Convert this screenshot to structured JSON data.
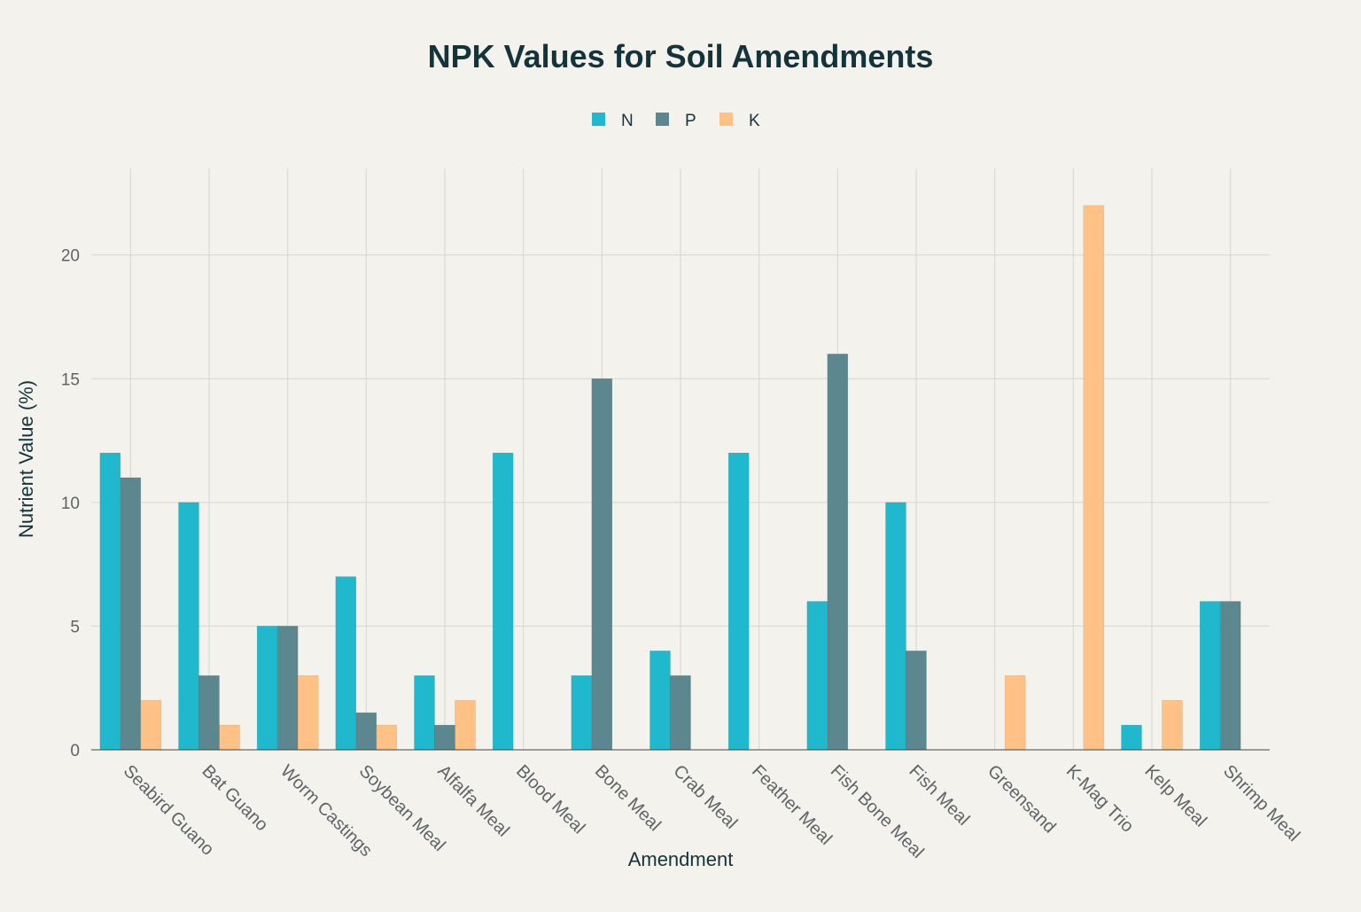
{
  "chart_data": {
    "type": "bar",
    "title": "NPK Values for Soil Amendments",
    "xlabel": "Amendment",
    "ylabel": "Nutrient Value (%)",
    "ylim": [
      0,
      23.5
    ],
    "yticks": [
      0,
      5,
      10,
      15,
      20
    ],
    "grid": true,
    "legend_position": "top-center",
    "categories": [
      "Seabird Guano",
      "Bat Guano",
      "Worm Castings",
      "Soybean Meal",
      "Alfalfa Meal",
      "Blood Meal",
      "Bone Meal",
      "Crab Meal",
      "Feather Meal",
      "Fish Bone Meal",
      "Fish Meal",
      "Greensand",
      "K-Mag Trio",
      "Kelp Meal",
      "Shrimp Meal"
    ],
    "series": [
      {
        "name": "N",
        "color": "#1fb8cd",
        "values": [
          12,
          10,
          5,
          7,
          3,
          12,
          3,
          4,
          12,
          6,
          10,
          0,
          0,
          1,
          6
        ]
      },
      {
        "name": "P",
        "color": "#5d878f",
        "values": [
          11,
          3,
          5,
          1.5,
          1,
          0,
          15,
          3,
          0,
          16,
          4,
          0,
          0,
          0,
          6
        ]
      },
      {
        "name": "K",
        "color": "#ffc185",
        "values": [
          2,
          1,
          3,
          1,
          2,
          0,
          0,
          0,
          0,
          0,
          0,
          3,
          22,
          2,
          0
        ]
      }
    ]
  }
}
